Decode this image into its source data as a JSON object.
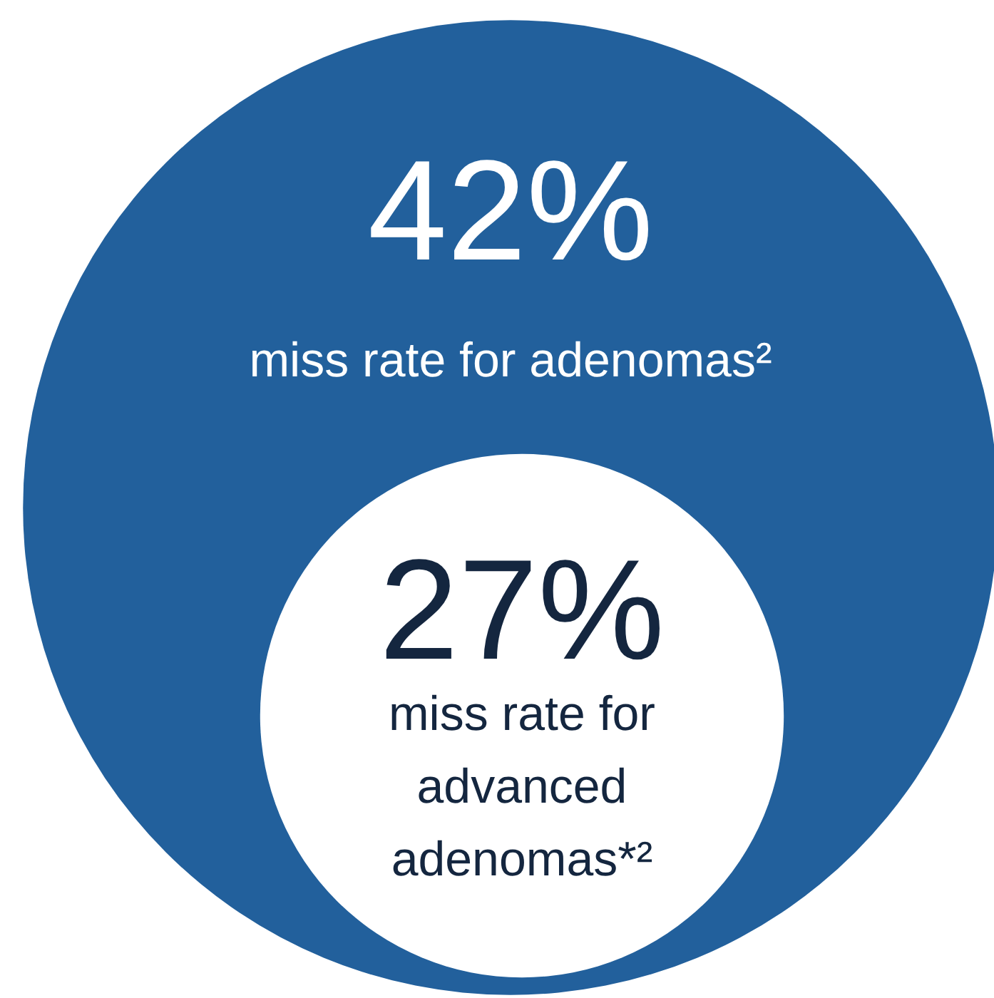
{
  "chart_data": {
    "type": "other",
    "categories": [
      "miss rate for adenomas²",
      "miss rate for advanced adenomas*²"
    ],
    "values": [
      42,
      27
    ],
    "value_labels": [
      "42%",
      "27%"
    ],
    "colors": [
      "#22609c",
      "#ffffff"
    ]
  }
}
